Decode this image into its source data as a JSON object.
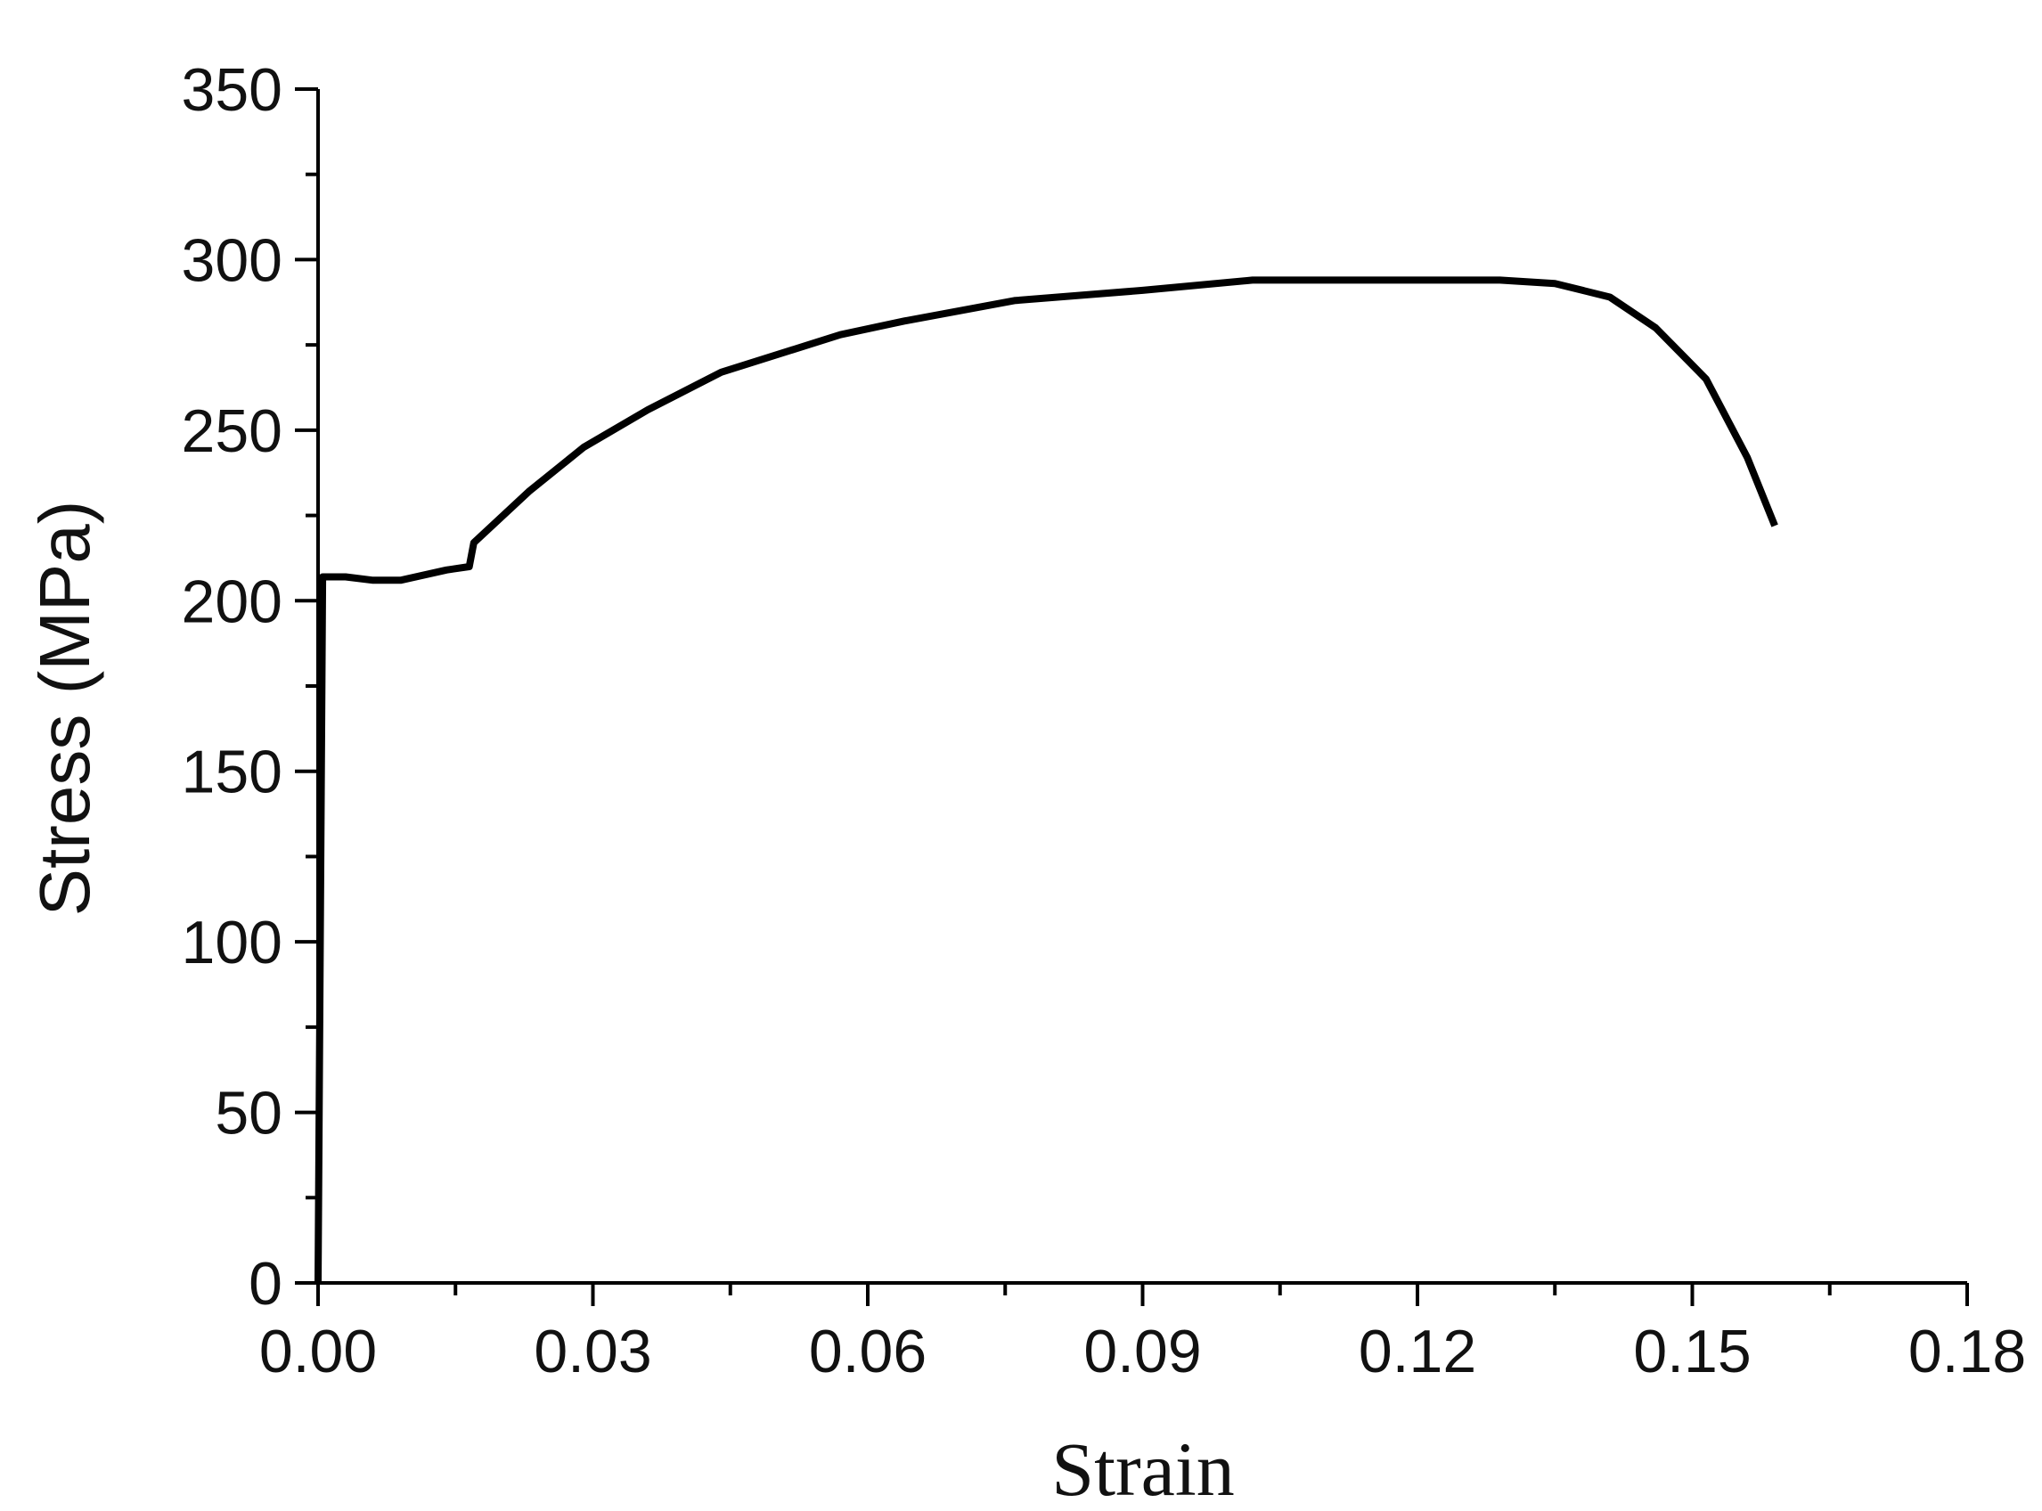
{
  "chart_data": {
    "type": "line",
    "title": "",
    "xlabel": "Strain",
    "ylabel": "Stress (MPa)",
    "xlim": [
      0,
      0.18
    ],
    "ylim": [
      0,
      350
    ],
    "x_ticks": [
      "0.00",
      "0.03",
      "0.06",
      "0.09",
      "0.12",
      "0.15",
      "0.18"
    ],
    "y_ticks": [
      "0",
      "50",
      "100",
      "150",
      "200",
      "250",
      "300",
      "350"
    ],
    "x_tick_values": [
      0,
      0.03,
      0.06,
      0.09,
      0.12,
      0.15,
      0.18
    ],
    "y_tick_values": [
      0,
      50,
      100,
      150,
      200,
      250,
      300,
      350
    ],
    "minor_x_step": 0.015,
    "minor_y_step": 25,
    "grid": false,
    "series": [
      {
        "color": "#000000",
        "x": [
          0.0,
          0.0005,
          0.001,
          0.003,
          0.006,
          0.009,
          0.014,
          0.0165,
          0.017,
          0.023,
          0.029,
          0.036,
          0.044,
          0.057,
          0.064,
          0.076,
          0.09,
          0.102,
          0.11,
          0.12,
          0.129,
          0.135,
          0.141,
          0.146,
          0.1515,
          0.156,
          0.159
        ],
        "y": [
          0,
          207,
          207,
          207,
          206,
          206,
          209,
          210,
          217,
          232,
          245,
          256,
          267,
          278,
          282,
          288,
          291,
          294,
          294,
          294,
          294,
          293,
          289,
          280,
          265,
          242,
          222
        ]
      }
    ]
  }
}
